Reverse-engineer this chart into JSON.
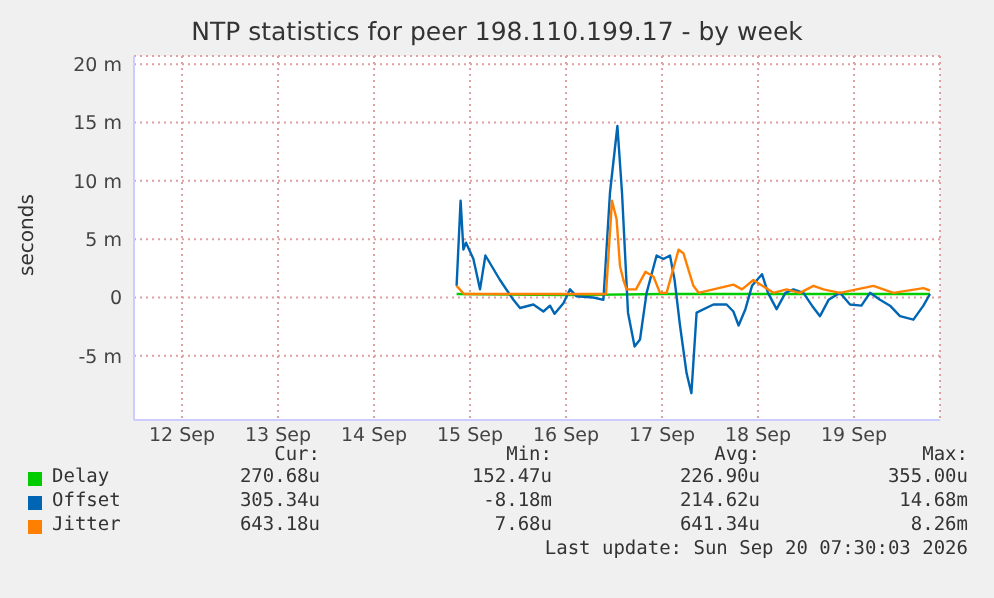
{
  "chart_data": {
    "type": "line",
    "title": "NTP statistics for peer 198.110.199.17 - by week",
    "ylabel": "seconds",
    "xlim": [
      "2026-09-12T00:00",
      "2026-09-20T09:30"
    ],
    "xticks": [
      {
        "value": "2026-09-12T12:00",
        "label": "12 Sep"
      },
      {
        "value": "2026-09-13T12:00",
        "label": "13 Sep"
      },
      {
        "value": "2026-09-14T12:00",
        "label": "14 Sep"
      },
      {
        "value": "2026-09-15T12:00",
        "label": "15 Sep"
      },
      {
        "value": "2026-09-16T12:00",
        "label": "16 Sep"
      },
      {
        "value": "2026-09-17T12:00",
        "label": "17 Sep"
      },
      {
        "value": "2026-09-18T12:00",
        "label": "18 Sep"
      },
      {
        "value": "2026-09-19T12:00",
        "label": "19 Sep"
      }
    ],
    "ylim": [
      -10.5,
      20.7
    ],
    "yticks": [
      {
        "value": -5,
        "label": "-5 m"
      },
      {
        "value": 0,
        "label": "0"
      },
      {
        "value": 5,
        "label": "5 m"
      },
      {
        "value": 10,
        "label": "10 m"
      },
      {
        "value": 15,
        "label": "15 m"
      },
      {
        "value": 20,
        "label": "20 m"
      }
    ],
    "grid": true,
    "legend": "bottom",
    "series": [
      {
        "name": "Delay",
        "color": "#00cc00",
        "x": [
          "2026-09-15T08:39",
          "2026-09-16T12:00",
          "2026-09-17T12:00",
          "2026-09-18T12:00",
          "2026-09-19T12:00",
          "2026-09-20T07:00"
        ],
        "values": [
          0.3,
          0.2,
          0.3,
          0.3,
          0.3,
          0.3
        ]
      },
      {
        "name": "Offset",
        "color": "#0066b3",
        "x": [
          "2026-09-15T08:39",
          "2026-09-15T09:39",
          "2026-09-15T10:21",
          "2026-09-15T11:00",
          "2026-09-15T12:51",
          "2026-09-15T14:30",
          "2026-09-15T15:51",
          "2026-09-15T19:30",
          "2026-09-15T22:51",
          "2026-09-16T00:30",
          "2026-09-16T03:51",
          "2026-09-16T06:21",
          "2026-09-16T08:00",
          "2026-09-16T09:09",
          "2026-09-16T11:21",
          "2026-09-16T13:00",
          "2026-09-16T14:39",
          "2026-09-16T18:51",
          "2026-09-16T21:21",
          "2026-09-16T23:00",
          "2026-09-17T00:51",
          "2026-09-17T02:00",
          "2026-09-17T03:30",
          "2026-09-17T05:09",
          "2026-09-17T06:30",
          "2026-09-17T08:09",
          "2026-09-17T10:39",
          "2026-09-17T12:21",
          "2026-09-17T14:00",
          "2026-09-17T15:09",
          "2026-09-17T16:30",
          "2026-09-17T18:09",
          "2026-09-17T19:21",
          "2026-09-17T20:39",
          "2026-09-18T00:51",
          "2026-09-18T04:09",
          "2026-09-18T05:51",
          "2026-09-18T07:09",
          "2026-09-18T08:51",
          "2026-09-18T10:30",
          "2026-09-18T13:00",
          "2026-09-18T14:30",
          "2026-09-18T16:39",
          "2026-09-18T18:51",
          "2026-09-18T20:51",
          "2026-09-18T23:21",
          "2026-09-19T01:30",
          "2026-09-19T03:30",
          "2026-09-19T05:39",
          "2026-09-19T08:30",
          "2026-09-19T11:00",
          "2026-09-19T13:51",
          "2026-09-19T16:00",
          "2026-09-19T18:30",
          "2026-09-19T21:00",
          "2026-09-19T23:30",
          "2026-09-20T02:51",
          "2026-09-20T05:21",
          "2026-09-20T07:00"
        ],
        "values": [
          1.0,
          8.3,
          4.1,
          4.7,
          3.3,
          0.7,
          3.6,
          1.5,
          -0.2,
          -0.9,
          -0.6,
          -1.2,
          -0.7,
          -1.4,
          -0.5,
          0.7,
          0.1,
          0,
          -0.2,
          9,
          14.7,
          9,
          -1.3,
          -4.2,
          -3.6,
          0.4,
          3.6,
          3.3,
          3.6,
          1.5,
          -2.4,
          -6.5,
          -8.2,
          -1.3,
          -0.6,
          -0.6,
          -1.2,
          -2.4,
          -1,
          1,
          2.0,
          0.4,
          -1,
          0.4,
          0.7,
          0.4,
          -0.7,
          -1.6,
          -0.2,
          0.4,
          -0.6,
          -0.7,
          0.4,
          -0.2,
          -0.7,
          -1.6,
          -1.9,
          -0.7,
          0.3
        ]
      },
      {
        "name": "Jitter",
        "color": "#ff8000",
        "x": [
          "2026-09-15T08:39",
          "2026-09-15T10:30",
          "2026-09-16T05:30",
          "2026-09-16T22:00",
          "2026-09-16T23:30",
          "2026-09-17T00:39",
          "2026-09-17T01:30",
          "2026-09-17T02:21",
          "2026-09-17T03:09",
          "2026-09-17T05:30",
          "2026-09-17T07:51",
          "2026-09-17T09:51",
          "2026-09-17T11:30",
          "2026-09-17T13:09",
          "2026-09-17T16:09",
          "2026-09-17T17:21",
          "2026-09-17T19:51",
          "2026-09-17T21:09",
          "2026-09-18T05:51",
          "2026-09-18T08:00",
          "2026-09-18T10:51",
          "2026-09-18T15:51",
          "2026-09-18T19:09",
          "2026-09-18T22:30",
          "2026-09-19T01:51",
          "2026-09-19T04:21",
          "2026-09-19T08:30",
          "2026-09-19T16:51",
          "2026-09-19T21:51",
          "2026-09-20T05:21",
          "2026-09-20T07:00"
        ],
        "values": [
          1.0,
          0.3,
          0.3,
          0.3,
          8.3,
          6.7,
          2.7,
          1.5,
          0.7,
          0.7,
          2.2,
          1.8,
          0.4,
          0.4,
          4.1,
          3.8,
          1.0,
          0.4,
          1.1,
          0.7,
          1.5,
          0.4,
          0.7,
          0.4,
          1.0,
          0.7,
          0.4,
          1.0,
          0.4,
          0.8,
          0.6
        ]
      }
    ],
    "annotations": [
      "Cur:",
      "Min:",
      "Avg:",
      "Max:",
      "270.68u",
      "152.47u",
      "226.90u",
      "355.00u",
      "305.34u",
      "-8.18m",
      "214.62u",
      "14.68m",
      "643.18u",
      "7.68u",
      "641.34u",
      "8.26m",
      "Last update: Sun Sep 20 07:30:03 2026"
    ]
  }
}
